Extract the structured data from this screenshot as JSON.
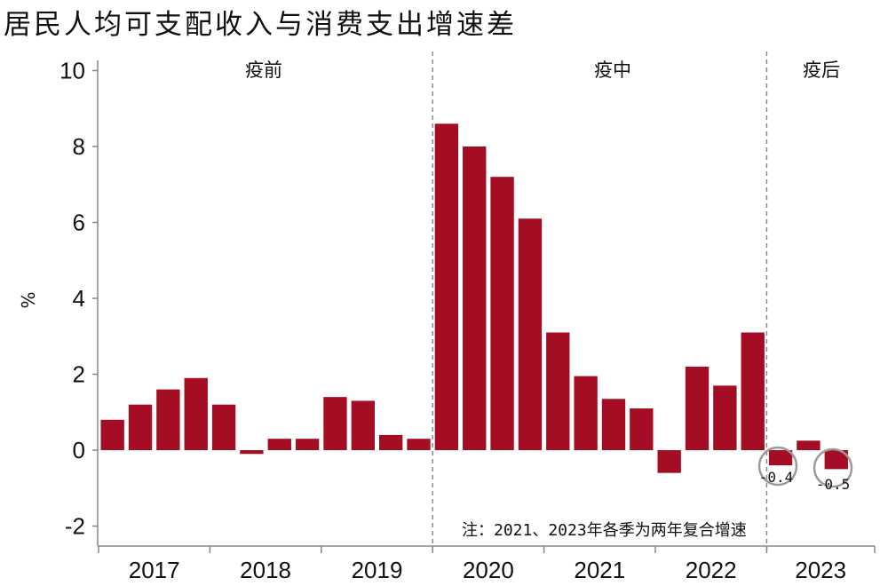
{
  "title": "居民人均可支配收入与消费支出增速差",
  "chart_data": {
    "type": "bar",
    "title": "居民人均可支配收入与消费支出增速差",
    "ylabel": "%",
    "ylim": [
      -2.4,
      10.3
    ],
    "yticks": [
      "10",
      "8",
      "6",
      "4",
      "2",
      "0",
      "-2"
    ],
    "years": [
      "2017",
      "2018",
      "2019",
      "2020",
      "2021",
      "2022",
      "2023"
    ],
    "quarters_per_year": 4,
    "values": [
      0.8,
      1.2,
      1.6,
      1.9,
      1.2,
      -0.1,
      0.3,
      0.3,
      1.4,
      1.3,
      0.4,
      0.3,
      8.6,
      8.0,
      7.2,
      6.1,
      3.1,
      1.95,
      1.35,
      1.1,
      -0.6,
      2.2,
      1.7,
      3.1,
      -0.4,
      0.25,
      -0.5
    ],
    "phases": [
      "疫前",
      "疫中",
      "疫后"
    ],
    "annotations": [
      "-0.4",
      "-0.5"
    ],
    "note": "注：2021、2023年各季为两年复合增速",
    "bar_color": "#a50d24",
    "grid": false,
    "legend": "none"
  }
}
